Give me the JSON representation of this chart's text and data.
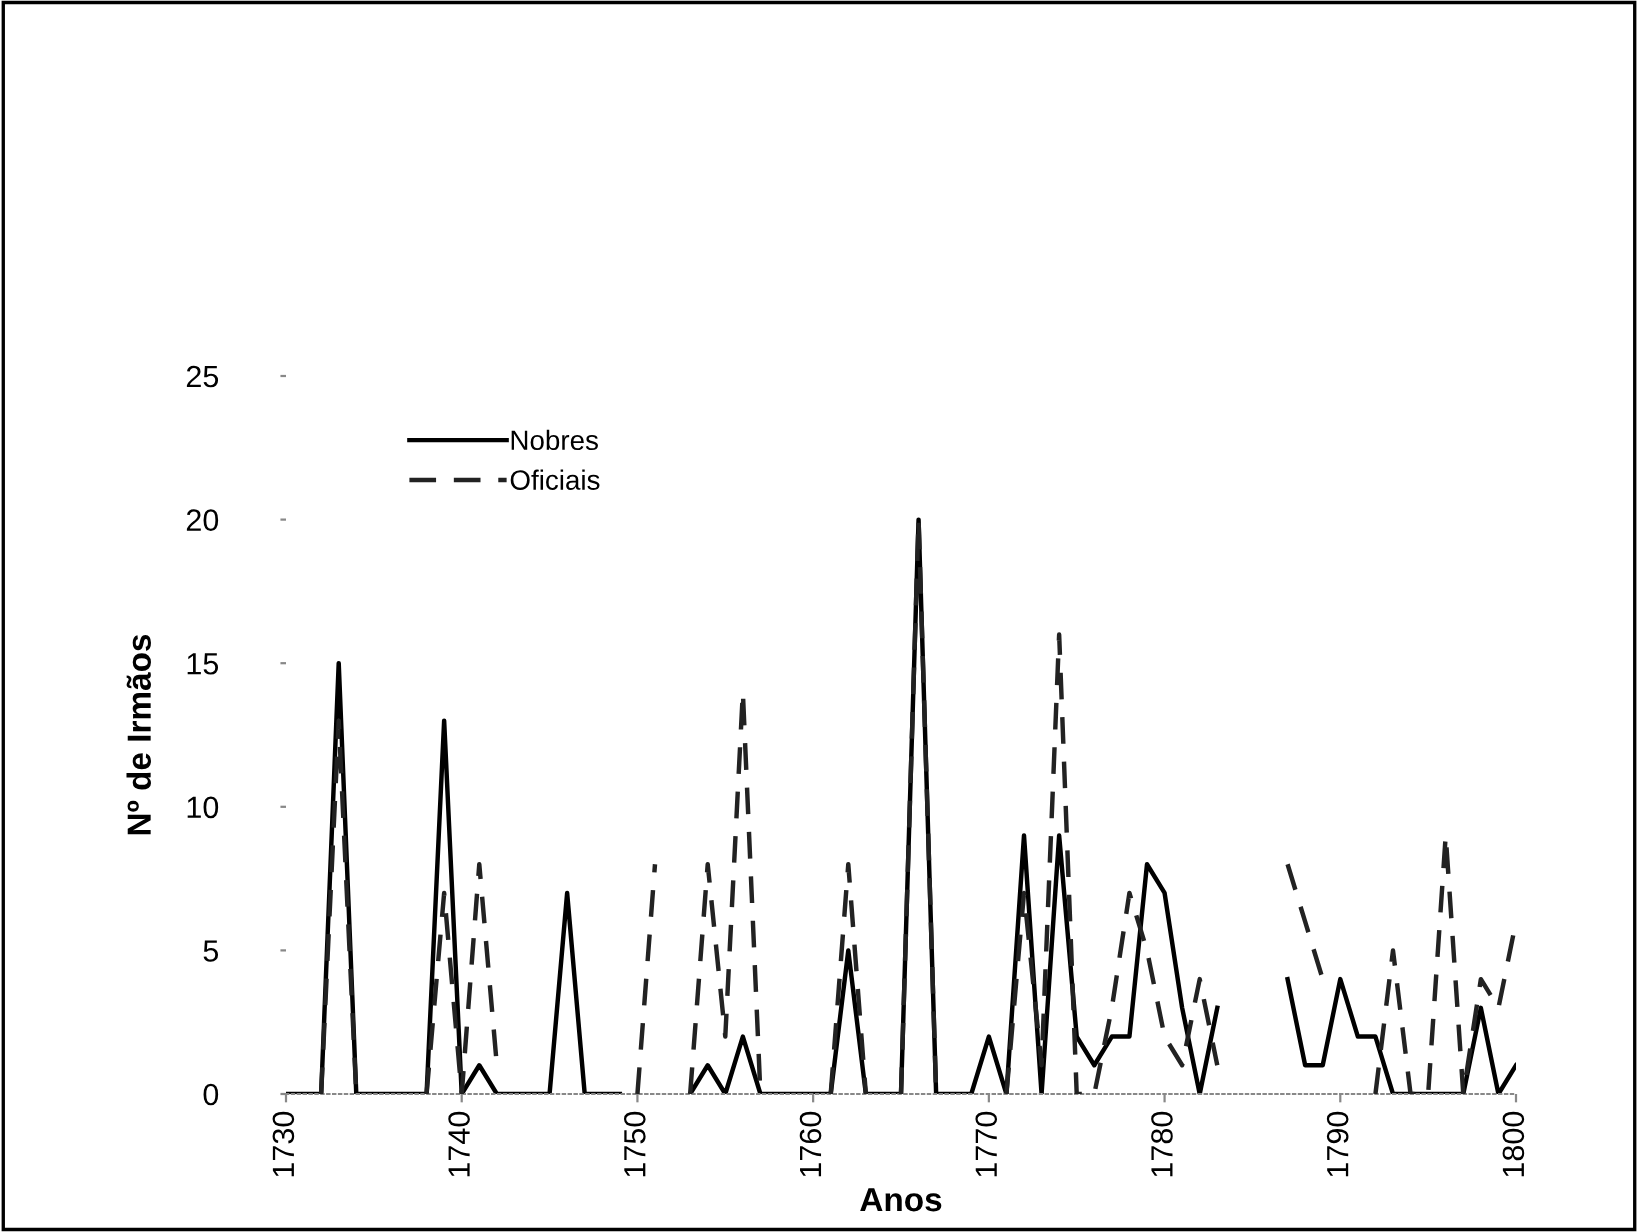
{
  "chart_data": {
    "type": "line",
    "xlabel": "Anos",
    "ylabel": "Nº de Irmãos",
    "x": [
      1730,
      1731,
      1732,
      1733,
      1734,
      1735,
      1736,
      1737,
      1738,
      1739,
      1740,
      1741,
      1742,
      1743,
      1744,
      1745,
      1746,
      1747,
      1748,
      1749,
      1750,
      1751,
      1752,
      1753,
      1754,
      1755,
      1756,
      1757,
      1758,
      1759,
      1760,
      1761,
      1762,
      1763,
      1764,
      1765,
      1766,
      1767,
      1768,
      1769,
      1770,
      1771,
      1772,
      1773,
      1774,
      1775,
      1776,
      1777,
      1778,
      1779,
      1780,
      1781,
      1782,
      1783,
      1784,
      1785,
      1786,
      1787,
      1788,
      1789,
      1790,
      1791,
      1792,
      1793,
      1794,
      1795,
      1796,
      1797,
      1798,
      1799,
      1800
    ],
    "series": [
      {
        "name": "Nobres",
        "color": "#000000",
        "line_style": "solid",
        "values": [
          0,
          0,
          0,
          15,
          0,
          0,
          0,
          0,
          0,
          13,
          0,
          1,
          0,
          0,
          0,
          0,
          7,
          0,
          0,
          0,
          null,
          null,
          null,
          0,
          1,
          0,
          2,
          0,
          0,
          0,
          0,
          0,
          5,
          0,
          0,
          0,
          20,
          0,
          0,
          0,
          2,
          0,
          9,
          0,
          9,
          2,
          1,
          2,
          2,
          8,
          7,
          3,
          0,
          3,
          null,
          null,
          null,
          4,
          1,
          1,
          4,
          2,
          2,
          0,
          0,
          0,
          0,
          0,
          3,
          0,
          1
        ]
      },
      {
        "name": "Oficiais",
        "color": "#222222",
        "line_style": "dashed",
        "values": [
          null,
          null,
          0,
          13,
          0,
          null,
          null,
          null,
          0,
          7,
          0,
          8,
          1,
          null,
          null,
          null,
          null,
          null,
          null,
          null,
          0,
          8,
          null,
          0,
          8,
          2,
          14,
          0,
          null,
          null,
          null,
          0,
          8,
          0,
          null,
          0,
          20,
          0,
          null,
          null,
          null,
          0,
          7,
          1,
          16,
          0,
          0,
          3,
          7,
          5,
          2,
          1,
          4,
          1,
          null,
          null,
          null,
          8,
          6,
          4,
          null,
          null,
          0,
          5,
          0,
          0,
          9,
          0,
          4,
          3,
          6
        ]
      }
    ],
    "xlim": [
      1730,
      1800
    ],
    "xticks": [
      1730,
      1740,
      1750,
      1760,
      1770,
      1780,
      1790,
      1800
    ],
    "ylim": [
      0,
      25
    ],
    "yticks": [
      0,
      5,
      10,
      15,
      20,
      25
    ],
    "grid": false,
    "legend": "top left"
  }
}
